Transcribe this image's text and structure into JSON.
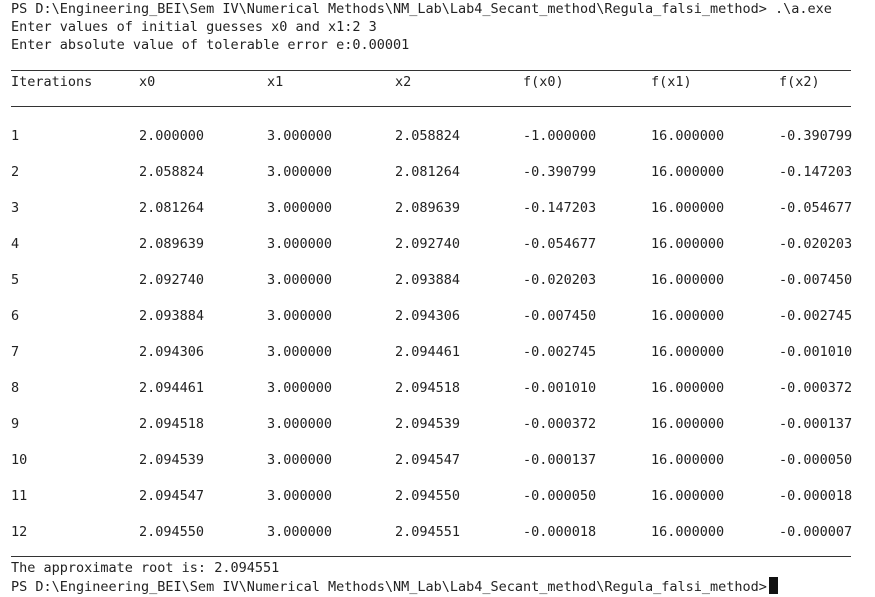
{
  "terminal": {
    "prompt_line": "PS D:\\Engineering_BEI\\Sem IV\\Numerical Methods\\NM_Lab\\Lab4_Secant_method\\Regula_falsi_method> .\\a.exe",
    "input_prompt_1": "Enter values of initial guesses x0 and x1:2 3",
    "input_prompt_2": "Enter absolute value of tolerable error e:0.00001",
    "result_line": "The approximate root is: 2.094551",
    "final_prompt": "PS D:\\Engineering_BEI\\Sem IV\\Numerical Methods\\NM_Lab\\Lab4_Secant_method\\Regula_falsi_method>"
  },
  "table": {
    "headers": [
      "Iterations",
      "x0",
      "x1",
      "x2",
      "f(x0)",
      "f(x1)",
      "f(x2)"
    ],
    "rows": [
      [
        "1",
        "2.000000",
        "3.000000",
        "2.058824",
        "-1.000000",
        "16.000000",
        "-0.390799"
      ],
      [
        "2",
        "2.058824",
        "3.000000",
        "2.081264",
        "-0.390799",
        "16.000000",
        "-0.147203"
      ],
      [
        "3",
        "2.081264",
        "3.000000",
        "2.089639",
        "-0.147203",
        "16.000000",
        "-0.054677"
      ],
      [
        "4",
        "2.089639",
        "3.000000",
        "2.092740",
        "-0.054677",
        "16.000000",
        "-0.020203"
      ],
      [
        "5",
        "2.092740",
        "3.000000",
        "2.093884",
        "-0.020203",
        "16.000000",
        "-0.007450"
      ],
      [
        "6",
        "2.093884",
        "3.000000",
        "2.094306",
        "-0.007450",
        "16.000000",
        "-0.002745"
      ],
      [
        "7",
        "2.094306",
        "3.000000",
        "2.094461",
        "-0.002745",
        "16.000000",
        "-0.001010"
      ],
      [
        "8",
        "2.094461",
        "3.000000",
        "2.094518",
        "-0.001010",
        "16.000000",
        "-0.000372"
      ],
      [
        "9",
        "2.094518",
        "3.000000",
        "2.094539",
        "-0.000372",
        "16.000000",
        "-0.000137"
      ],
      [
        "10",
        "2.094539",
        "3.000000",
        "2.094547",
        "-0.000137",
        "16.000000",
        "-0.000050"
      ],
      [
        "11",
        "2.094547",
        "3.000000",
        "2.094550",
        "-0.000050",
        "16.000000",
        "-0.000018"
      ],
      [
        "12",
        "2.094550",
        "3.000000",
        "2.094551",
        "-0.000018",
        "16.000000",
        "-0.000007"
      ]
    ]
  }
}
